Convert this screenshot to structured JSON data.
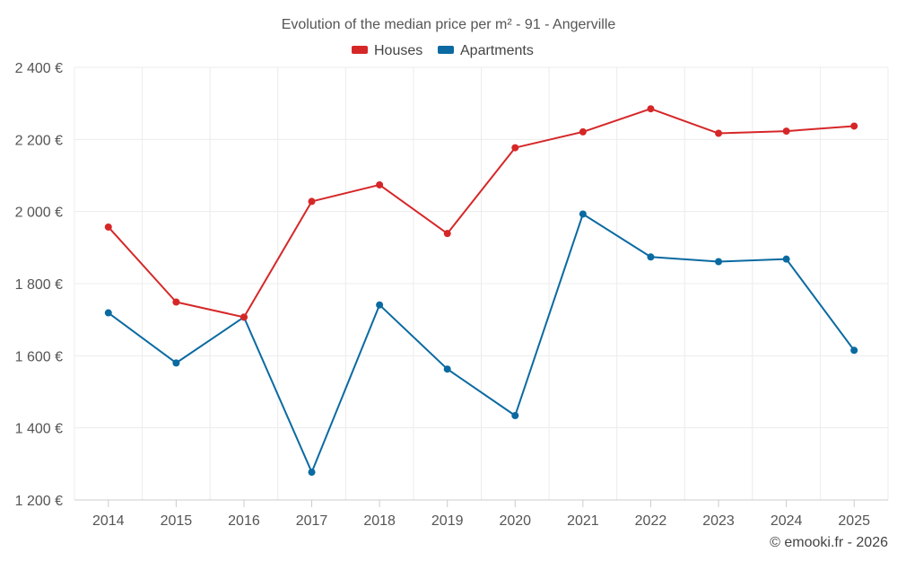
{
  "chart_data": {
    "type": "line",
    "title": "Evolution of the median price per m² - 91 - Angerville",
    "categories": [
      "2014",
      "2015",
      "2016",
      "2017",
      "2018",
      "2019",
      "2020",
      "2021",
      "2022",
      "2023",
      "2024",
      "2025"
    ],
    "series": [
      {
        "name": "Houses",
        "color": "#d62728",
        "values": [
          1957,
          1749,
          1707,
          2028,
          2074,
          1939,
          2177,
          2221,
          2285,
          2217,
          2223,
          2237
        ]
      },
      {
        "name": "Apartments",
        "color": "#0a6aa1",
        "values": [
          1719,
          1580,
          1707,
          1277,
          1741,
          1563,
          1434,
          1993,
          1874,
          1861,
          1868,
          1615
        ]
      }
    ],
    "ylim": [
      1200,
      2400
    ],
    "yticks": [
      1200,
      1400,
      1600,
      1800,
      2000,
      2200,
      2400
    ],
    "ytick_labels": [
      "1 200 €",
      "1 400 €",
      "1 600 €",
      "1 800 €",
      "2 000 €",
      "2 200 €",
      "2 400 €"
    ],
    "xlabel": "",
    "ylabel": "",
    "legend_position": "top-center",
    "grid": true
  },
  "credit": "© emooki.fr - 2026"
}
